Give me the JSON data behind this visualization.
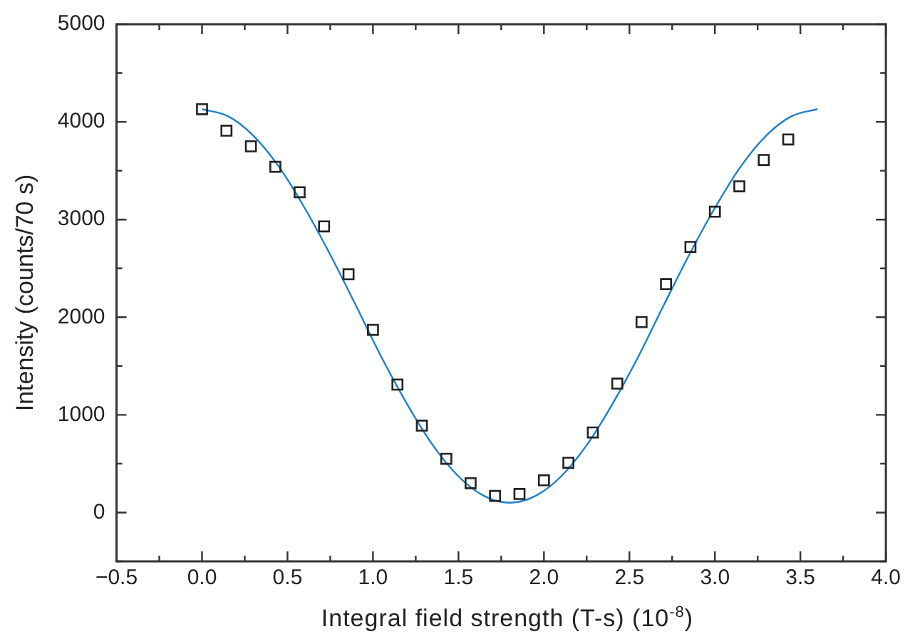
{
  "chart_data": {
    "type": "scatter",
    "xlabel": "Integral field strength (T-s) (10$^{-8}$)",
    "ylabel": "Intensity (counts/70 s)",
    "xlim": [
      -0.5,
      4.0
    ],
    "ylim": [
      -500,
      5000
    ],
    "xticks": [
      {
        "value": -0.5,
        "label": "−0.5"
      },
      {
        "value": -0.25,
        "label": null
      },
      "0.0",
      {
        "value": 0.25,
        "label": null
      },
      0.5,
      {
        "value": 0.75,
        "label": null
      },
      "1.0",
      {
        "value": 1.25,
        "label": null
      },
      1.5,
      {
        "value": 1.75,
        "label": null
      },
      "2.0",
      {
        "value": 2.25,
        "label": null
      },
      2.5,
      {
        "value": 2.75,
        "label": null
      },
      "3.0",
      {
        "value": 3.25,
        "label": null
      },
      3.5,
      {
        "value": 3.75,
        "label": null
      },
      "4.0"
    ],
    "yticks": [
      {
        "value": -500,
        "label": null
      },
      0,
      {
        "value": 500,
        "label": null
      },
      1000,
      {
        "value": 1500,
        "label": null
      },
      2000,
      {
        "value": 2500,
        "label": null
      },
      3000,
      {
        "value": 3500,
        "label": null
      },
      4000,
      {
        "value": 4500,
        "label": null
      },
      5000
    ],
    "grid": false,
    "legend": false,
    "series": [
      {
        "color": "#222222",
        "marker": "square",
        "x": [
          0,
          0.143,
          0.286,
          0.429,
          0.571,
          0.714,
          0.857,
          1.0,
          1.143,
          1.286,
          1.429,
          1.571,
          1.714,
          1.857,
          2.0,
          2.143,
          2.286,
          2.429,
          2.571,
          2.714,
          2.857,
          3.0,
          3.143,
          3.286,
          3.429
        ],
        "values": [
          4130,
          3910,
          3750,
          3540,
          3280,
          2930,
          2440,
          1870,
          1310,
          890,
          550,
          300,
          170,
          190,
          330,
          510,
          820,
          1320,
          1950,
          2340,
          2720,
          3080,
          3340,
          3610,
          3820
        ]
      },
      {
        "type": "line",
        "color": "#1f7fc9",
        "marker": "none",
        "line_style": "solid",
        "x": [
          0,
          0.15,
          0.3,
          0.45,
          0.6,
          0.75,
          0.9,
          1.05,
          1.2,
          1.35,
          1.5,
          1.65,
          1.8,
          1.95,
          2.1,
          2.25,
          2.4,
          2.55,
          2.7,
          2.85,
          3.0,
          3.15,
          3.3,
          3.45,
          3.6
        ],
        "values": [
          4130,
          4060,
          3860,
          3540,
          3120,
          2640,
          2120,
          1590,
          1110,
          690,
          370,
          170,
          100,
          170,
          370,
          690,
          1110,
          1590,
          2120,
          2640,
          3120,
          3540,
          3860,
          4060,
          4130
        ]
      }
    ]
  }
}
